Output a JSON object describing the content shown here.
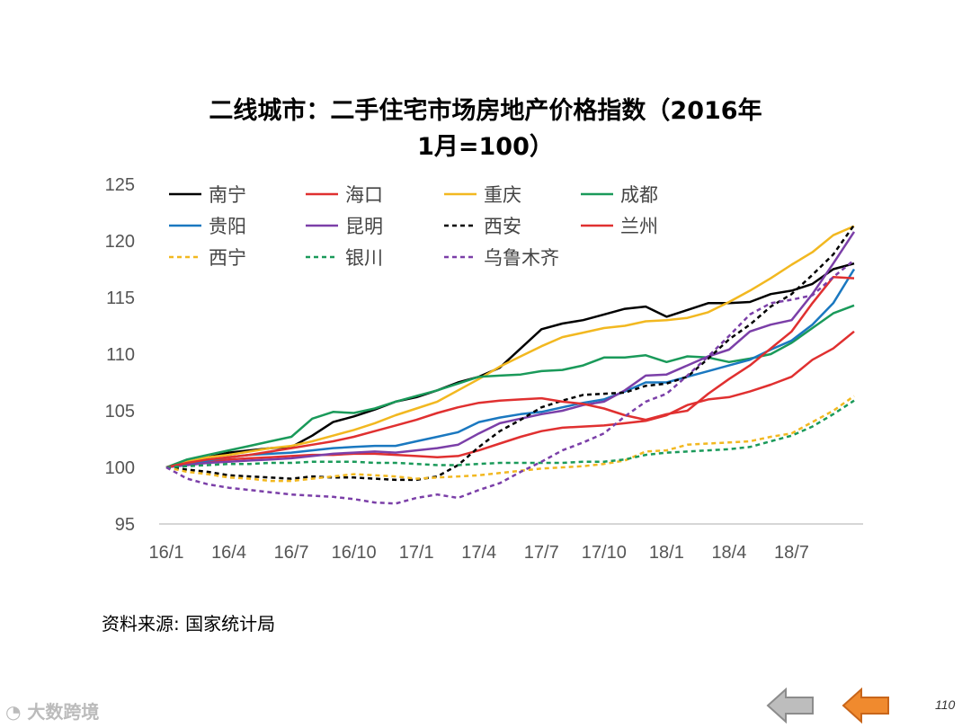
{
  "title_line1": "二线城市：二手住宅市场房地产价格指数（2016年",
  "title_line2": "1月=100）",
  "source": "资料来源:  国家统计局",
  "page_number": "110",
  "watermark": "大数跨境",
  "chart_data": {
    "type": "line",
    "title": "二线城市：二手住宅市场房地产价格指数（2016年1月=100）",
    "ylim": [
      95,
      125
    ],
    "y_ticks": [
      "95",
      "100",
      "105",
      "110",
      "115",
      "120",
      "125"
    ],
    "x_tick_labels": [
      "16/1",
      "16/4",
      "16/7",
      "16/10",
      "17/1",
      "17/4",
      "17/7",
      "17/10",
      "18/1",
      "18/4",
      "18/7"
    ],
    "x_labels_note_months": [
      "2016-01",
      "2016-04",
      "2016-07",
      "2016-10",
      "2017-01",
      "2017-04",
      "2017-07",
      "2017-10",
      "2018-01",
      "2018-04",
      "2018-07"
    ],
    "x": [
      "16/1",
      "16/2",
      "16/3",
      "16/4",
      "16/5",
      "16/6",
      "16/7",
      "16/8",
      "16/9",
      "16/10",
      "16/11",
      "16/12",
      "17/1",
      "17/2",
      "17/3",
      "17/4",
      "17/5",
      "17/6",
      "17/7",
      "17/8",
      "17/9",
      "17/10",
      "17/11",
      "17/12",
      "18/1",
      "18/2",
      "18/3",
      "18/4",
      "18/5",
      "18/6",
      "18/7",
      "18/8",
      "18/9",
      "18/10"
    ],
    "grid": false,
    "legend_position": "top",
    "series": [
      {
        "name": "南宁",
        "color": "#000000",
        "dash": "solid",
        "values": [
          100,
          100.5,
          100.9,
          101.3,
          101.5,
          101.7,
          101.8,
          102.8,
          104.0,
          104.5,
          105.1,
          105.8,
          106.2,
          106.8,
          107.5,
          108.0,
          108.8,
          110.5,
          112.2,
          112.7,
          113.0,
          113.5,
          114.0,
          114.2,
          113.3,
          113.9,
          114.5,
          114.5,
          114.6,
          115.3,
          115.6,
          116.2,
          117.5,
          118.0
        ]
      },
      {
        "name": "海口",
        "color": "#E03030",
        "dash": "solid",
        "values": [
          100,
          100.3,
          100.5,
          100.7,
          100.8,
          100.9,
          101.0,
          101.1,
          101.1,
          101.2,
          101.2,
          101.1,
          101.0,
          100.9,
          101.0,
          101.5,
          102.1,
          102.7,
          103.2,
          103.5,
          103.6,
          103.7,
          103.9,
          104.1,
          104.6,
          105.5,
          106.0,
          106.2,
          106.7,
          107.3,
          108.0,
          109.5,
          110.5,
          112.0
        ]
      },
      {
        "name": "重庆",
        "color": "#F2B820",
        "dash": "solid",
        "values": [
          100,
          100.5,
          100.9,
          101.1,
          101.4,
          101.7,
          101.9,
          102.3,
          102.8,
          103.3,
          103.9,
          104.6,
          105.2,
          105.8,
          106.8,
          107.8,
          108.9,
          109.8,
          110.7,
          111.5,
          111.9,
          112.3,
          112.5,
          112.9,
          113.0,
          113.2,
          113.7,
          114.6,
          115.6,
          116.7,
          117.9,
          119.0,
          120.5,
          121.3
        ]
      },
      {
        "name": "成都",
        "color": "#1A9A5A",
        "dash": "solid",
        "values": [
          100,
          100.7,
          101.1,
          101.5,
          101.9,
          102.3,
          102.7,
          104.3,
          104.9,
          104.8,
          105.2,
          105.8,
          106.3,
          106.8,
          107.4,
          108.0,
          108.1,
          108.2,
          108.5,
          108.6,
          109.0,
          109.7,
          109.7,
          109.9,
          109.3,
          109.8,
          109.7,
          109.3,
          109.6,
          110.0,
          111.0,
          112.3,
          113.6,
          114.3
        ]
      },
      {
        "name": "贵阳",
        "color": "#1A78C0",
        "dash": "solid",
        "values": [
          100,
          100.3,
          100.6,
          100.9,
          101.1,
          101.2,
          101.3,
          101.5,
          101.7,
          101.8,
          101.9,
          101.9,
          102.3,
          102.7,
          103.1,
          104.0,
          104.4,
          104.7,
          104.9,
          105.3,
          105.7,
          106.0,
          106.7,
          107.5,
          107.5,
          108.0,
          108.5,
          109.0,
          109.5,
          110.4,
          111.2,
          112.6,
          114.5,
          117.5
        ]
      },
      {
        "name": "昆明",
        "color": "#7B3FA8",
        "dash": "solid",
        "values": [
          100,
          100.2,
          100.4,
          100.5,
          100.6,
          100.7,
          100.8,
          101.0,
          101.2,
          101.3,
          101.4,
          101.3,
          101.5,
          101.7,
          102.0,
          103.0,
          103.9,
          104.3,
          104.7,
          105.0,
          105.5,
          105.8,
          106.8,
          108.1,
          108.2,
          109.0,
          109.8,
          110.4,
          112.0,
          112.6,
          113.0,
          115.3,
          118.0,
          120.8
        ]
      },
      {
        "name": "西安",
        "color": "#000000",
        "dash": "dash",
        "values": [
          100,
          99.8,
          99.6,
          99.3,
          99.2,
          99.1,
          99.0,
          99.2,
          99.1,
          99.1,
          99.0,
          98.9,
          98.9,
          99.2,
          100.2,
          101.8,
          103.2,
          104.2,
          105.3,
          105.9,
          106.4,
          106.5,
          106.6,
          107.2,
          107.4,
          108.0,
          109.6,
          111.3,
          112.6,
          114.2,
          115.3,
          117.0,
          118.8,
          121.4
        ]
      },
      {
        "name": "兰州",
        "color": "#E03030",
        "dash": "solid",
        "values": [
          100,
          100.4,
          100.7,
          100.9,
          101.1,
          101.4,
          101.7,
          102.0,
          102.3,
          102.7,
          103.2,
          103.7,
          104.2,
          104.8,
          105.3,
          105.7,
          105.9,
          106.0,
          106.1,
          105.8,
          105.6,
          105.2,
          104.6,
          104.2,
          104.7,
          105.0,
          106.5,
          107.8,
          109.0,
          110.5,
          112.0,
          114.5,
          116.8,
          116.7
        ]
      },
      {
        "name": "西宁",
        "color": "#F2B820",
        "dash": "dash",
        "values": [
          100,
          99.6,
          99.4,
          99.1,
          99.0,
          98.8,
          98.8,
          99.0,
          99.2,
          99.4,
          99.3,
          99.2,
          99.0,
          99.1,
          99.2,
          99.3,
          99.5,
          99.7,
          99.9,
          100.0,
          100.1,
          100.3,
          100.6,
          101.4,
          101.5,
          102.0,
          102.1,
          102.2,
          102.3,
          102.7,
          103.0,
          104.0,
          105.0,
          106.3
        ]
      },
      {
        "name": "银川",
        "color": "#1A9A5A",
        "dash": "dash",
        "values": [
          100,
          100.1,
          100.2,
          100.3,
          100.3,
          100.4,
          100.4,
          100.5,
          100.5,
          100.5,
          100.4,
          100.4,
          100.3,
          100.2,
          100.2,
          100.3,
          100.4,
          100.4,
          100.4,
          100.4,
          100.5,
          100.5,
          100.7,
          101.1,
          101.3,
          101.4,
          101.5,
          101.6,
          101.8,
          102.3,
          102.8,
          103.6,
          104.7,
          105.9
        ]
      },
      {
        "name": "乌鲁木齐",
        "color": "#7B3FA8",
        "dash": "dash",
        "values": [
          100,
          99.0,
          98.5,
          98.2,
          98.0,
          97.8,
          97.6,
          97.5,
          97.4,
          97.2,
          96.9,
          96.8,
          97.3,
          97.6,
          97.3,
          98.0,
          98.6,
          99.6,
          100.5,
          101.5,
          102.2,
          103.0,
          104.5,
          105.8,
          106.5,
          108.1,
          109.8,
          111.6,
          113.5,
          114.5,
          114.8,
          115.2,
          116.8,
          118.3
        ]
      }
    ]
  }
}
